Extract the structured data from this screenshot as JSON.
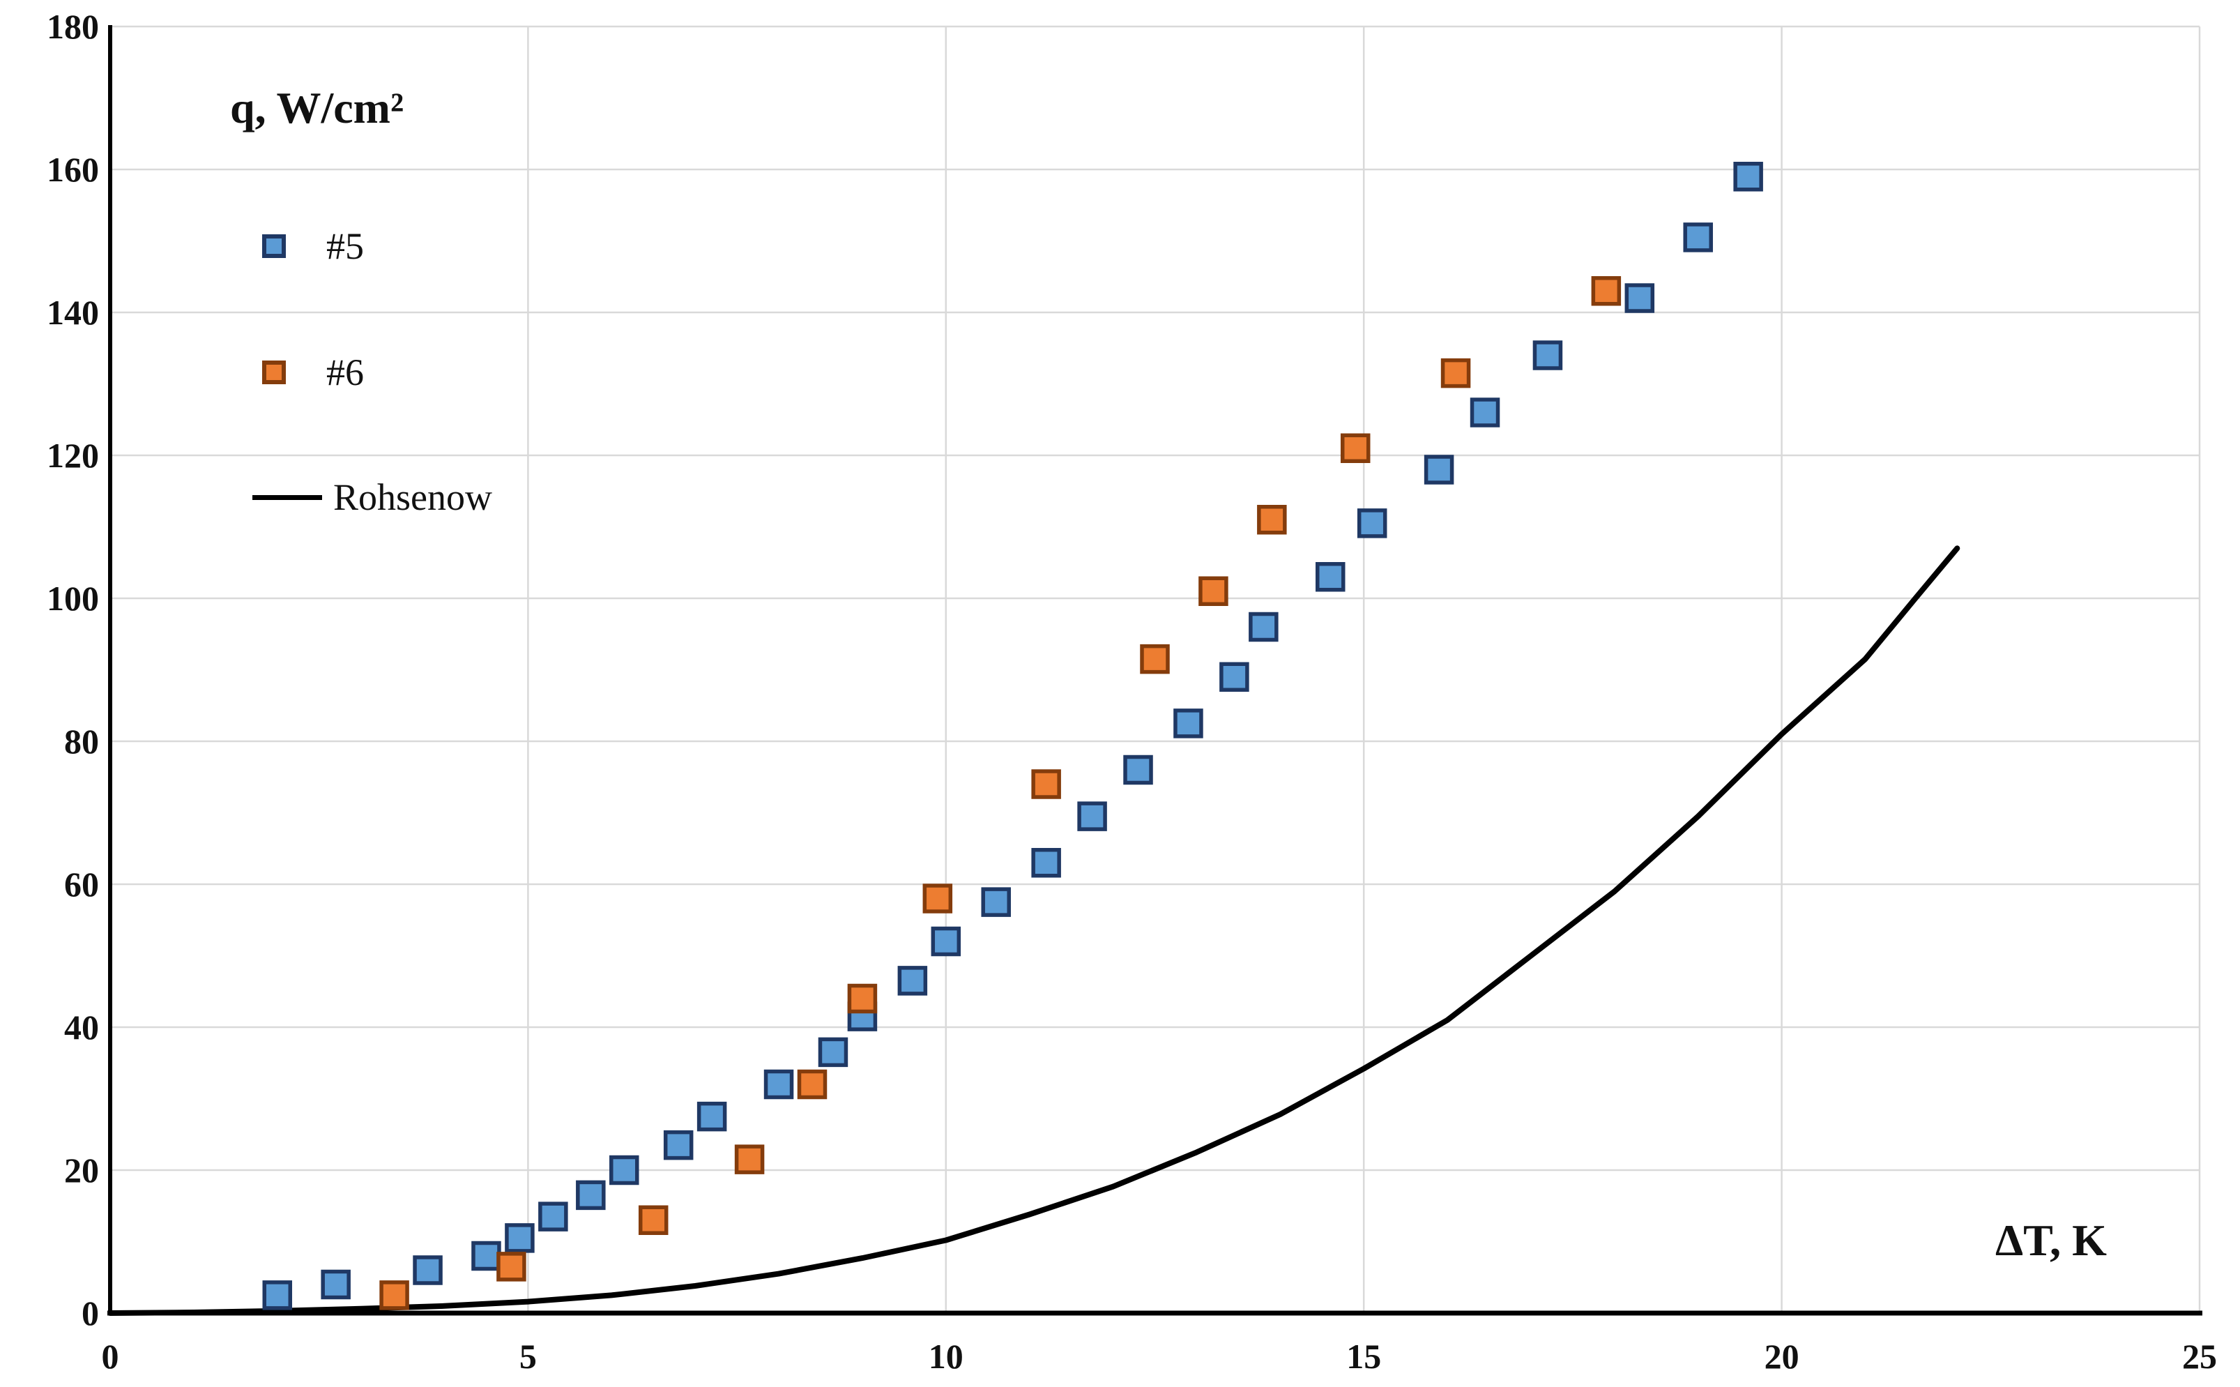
{
  "chart_data": {
    "type": "scatter",
    "title": "",
    "xlabel": "ΔT, K",
    "ylabel": "q, W/cm²",
    "xlim": [
      0,
      25
    ],
    "ylim": [
      0,
      180
    ],
    "x_ticks": [
      0,
      5,
      10,
      15,
      20,
      25
    ],
    "y_ticks": [
      0,
      20,
      40,
      60,
      80,
      100,
      120,
      140,
      160,
      180
    ],
    "grid": true,
    "legend_position": "inside-top-left",
    "colors": {
      "background": "#FFFFFF",
      "gridline": "#D9D9D9",
      "axis": "#000000",
      "series5_fill": "#5B9BD5",
      "series5_border": "#1F3864",
      "series6_fill": "#ED7D31",
      "series6_border": "#843C0C",
      "rohsenow_line": "#000000"
    },
    "series": [
      {
        "name": "#5",
        "type": "scatter",
        "marker": "square",
        "color": "#5B9BD5",
        "border_color": "#1F3864",
        "points": [
          [
            2.0,
            2.5
          ],
          [
            2.7,
            4
          ],
          [
            3.8,
            6
          ],
          [
            4.5,
            8
          ],
          [
            4.9,
            10.5
          ],
          [
            5.3,
            13.5
          ],
          [
            5.75,
            16.5
          ],
          [
            6.15,
            20
          ],
          [
            6.8,
            23.5
          ],
          [
            7.2,
            27.5
          ],
          [
            8.0,
            32
          ],
          [
            8.65,
            36.5
          ],
          [
            9.0,
            41.5
          ],
          [
            9.6,
            46.5
          ],
          [
            10.0,
            52
          ],
          [
            10.6,
            57.5
          ],
          [
            11.2,
            63
          ],
          [
            11.75,
            69.5
          ],
          [
            12.3,
            76
          ],
          [
            12.9,
            82.5
          ],
          [
            13.45,
            89
          ],
          [
            13.8,
            96
          ],
          [
            14.6,
            103
          ],
          [
            15.1,
            110.5
          ],
          [
            15.9,
            118
          ],
          [
            16.45,
            126
          ],
          [
            17.2,
            134
          ],
          [
            18.3,
            142
          ],
          [
            19.0,
            150.5
          ],
          [
            19.6,
            159
          ]
        ]
      },
      {
        "name": "#6",
        "type": "scatter",
        "marker": "square",
        "color": "#ED7D31",
        "border_color": "#843C0C",
        "points": [
          [
            3.4,
            2.5
          ],
          [
            4.8,
            6.5
          ],
          [
            6.5,
            13
          ],
          [
            7.65,
            21.5
          ],
          [
            8.4,
            32
          ],
          [
            9.0,
            44
          ],
          [
            9.9,
            58
          ],
          [
            11.2,
            74
          ],
          [
            12.5,
            91.5
          ],
          [
            13.2,
            101
          ],
          [
            13.9,
            111
          ],
          [
            14.9,
            121
          ],
          [
            16.1,
            131.5
          ],
          [
            17.9,
            143
          ]
        ]
      },
      {
        "name": "Rohsenow",
        "type": "line",
        "color": "#000000",
        "points": [
          [
            0,
            0
          ],
          [
            1,
            0.1
          ],
          [
            2,
            0.3
          ],
          [
            3,
            0.6
          ],
          [
            4,
            1.0
          ],
          [
            5,
            1.6
          ],
          [
            6,
            2.5
          ],
          [
            7,
            3.8
          ],
          [
            8,
            5.5
          ],
          [
            9,
            7.7
          ],
          [
            10,
            10.2
          ],
          [
            11,
            13.8
          ],
          [
            12,
            17.7
          ],
          [
            13,
            22.5
          ],
          [
            14,
            27.8
          ],
          [
            15,
            34.2
          ],
          [
            16,
            41
          ],
          [
            17,
            50
          ],
          [
            18,
            59
          ],
          [
            19,
            69.5
          ],
          [
            20,
            81
          ],
          [
            21,
            91.5
          ],
          [
            21.6,
            100
          ],
          [
            22.1,
            107
          ]
        ]
      }
    ]
  }
}
